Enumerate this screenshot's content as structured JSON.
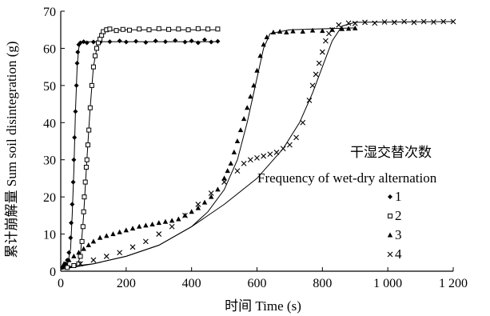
{
  "chart_data": {
    "type": "scatter",
    "xlabel": "时间 Time (s)",
    "ylabel": "累计崩解量 Sum soil disintegration (g)",
    "xlim": [
      0,
      1200
    ],
    "ylim": [
      0,
      70
    ],
    "x_ticks": [
      {
        "value": 0,
        "label": "0"
      },
      {
        "value": 200,
        "label": "200"
      },
      {
        "value": 400,
        "label": "400"
      },
      {
        "value": 600,
        "label": "600"
      },
      {
        "value": 800,
        "label": "800"
      },
      {
        "value": 1000,
        "label": "1 000"
      },
      {
        "value": 1200,
        "label": "1 200"
      }
    ],
    "y_ticks": [
      {
        "value": 0,
        "label": "0"
      },
      {
        "value": 10,
        "label": "10"
      },
      {
        "value": 20,
        "label": "20"
      },
      {
        "value": 30,
        "label": "30"
      },
      {
        "value": 40,
        "label": "40"
      },
      {
        "value": 50,
        "label": "50"
      },
      {
        "value": 60,
        "label": "60"
      },
      {
        "value": 70,
        "label": "70"
      }
    ],
    "grid": false,
    "legend": {
      "placement": "right",
      "title_cn": "干湿交替次数",
      "title_en": "Frequency of wet-dry alternation"
    },
    "series": [
      {
        "name": "1",
        "marker": "diamond",
        "points": [
          [
            5,
            1
          ],
          [
            10,
            1.5
          ],
          [
            15,
            2
          ],
          [
            20,
            3
          ],
          [
            25,
            5
          ],
          [
            30,
            9
          ],
          [
            32,
            13
          ],
          [
            35,
            18
          ],
          [
            38,
            24
          ],
          [
            40,
            30
          ],
          [
            42,
            36
          ],
          [
            45,
            43
          ],
          [
            48,
            50
          ],
          [
            50,
            56
          ],
          [
            52,
            59
          ],
          [
            55,
            61
          ],
          [
            60,
            61.5
          ],
          [
            70,
            61.8
          ],
          [
            80,
            61.5
          ],
          [
            100,
            61.7
          ],
          [
            120,
            61.6
          ],
          [
            150,
            61.8
          ],
          [
            180,
            62
          ],
          [
            200,
            61.7
          ],
          [
            230,
            61.9
          ],
          [
            260,
            61.6
          ],
          [
            290,
            62
          ],
          [
            320,
            61.8
          ],
          [
            350,
            62.1
          ],
          [
            380,
            61.7
          ],
          [
            400,
            62
          ],
          [
            420,
            61.5
          ],
          [
            440,
            62.3
          ],
          [
            460,
            61.7
          ],
          [
            480,
            61.9
          ]
        ],
        "fit": [
          [
            0,
            0.5
          ],
          [
            20,
            1.5
          ],
          [
            30,
            6
          ],
          [
            35,
            15
          ],
          [
            40,
            27
          ],
          [
            45,
            43
          ],
          [
            50,
            55
          ],
          [
            55,
            60
          ],
          [
            60,
            61.5
          ],
          [
            80,
            61.8
          ],
          [
            200,
            61.8
          ],
          [
            480,
            61.8
          ]
        ]
      },
      {
        "name": "2",
        "marker": "square",
        "points": [
          [
            20,
            1
          ],
          [
            40,
            1.5
          ],
          [
            55,
            2
          ],
          [
            60,
            4
          ],
          [
            65,
            8
          ],
          [
            68,
            12
          ],
          [
            70,
            16
          ],
          [
            72,
            20
          ],
          [
            75,
            24
          ],
          [
            78,
            28
          ],
          [
            80,
            30
          ],
          [
            83,
            34
          ],
          [
            86,
            38
          ],
          [
            90,
            44
          ],
          [
            95,
            50
          ],
          [
            100,
            55
          ],
          [
            105,
            58
          ],
          [
            110,
            60
          ],
          [
            115,
            61.5
          ],
          [
            120,
            62.5
          ],
          [
            125,
            63.5
          ],
          [
            130,
            64.5
          ],
          [
            140,
            65
          ],
          [
            150,
            65.2
          ],
          [
            170,
            64.8
          ],
          [
            190,
            65.1
          ],
          [
            210,
            64.9
          ],
          [
            240,
            65.2
          ],
          [
            270,
            65
          ],
          [
            300,
            65.3
          ],
          [
            330,
            65.1
          ],
          [
            360,
            65.2
          ],
          [
            390,
            65
          ],
          [
            420,
            65.3
          ],
          [
            450,
            65.2
          ],
          [
            480,
            65.2
          ]
        ],
        "fit": [
          [
            0,
            0.5
          ],
          [
            50,
            1.5
          ],
          [
            60,
            4
          ],
          [
            70,
            15
          ],
          [
            80,
            30
          ],
          [
            90,
            44
          ],
          [
            100,
            55
          ],
          [
            110,
            60
          ],
          [
            120,
            63
          ],
          [
            140,
            64.8
          ],
          [
            200,
            65
          ],
          [
            480,
            65
          ]
        ]
      },
      {
        "name": "3",
        "marker": "triangle",
        "points": [
          [
            10,
            2
          ],
          [
            25,
            3
          ],
          [
            40,
            4
          ],
          [
            55,
            5
          ],
          [
            70,
            6
          ],
          [
            85,
            7
          ],
          [
            100,
            8
          ],
          [
            120,
            9
          ],
          [
            140,
            9.5
          ],
          [
            160,
            10
          ],
          [
            180,
            10.5
          ],
          [
            200,
            11
          ],
          [
            220,
            11.5
          ],
          [
            240,
            12
          ],
          [
            260,
            12.3
          ],
          [
            280,
            12.6
          ],
          [
            300,
            13
          ],
          [
            320,
            13.3
          ],
          [
            340,
            13.6
          ],
          [
            360,
            14
          ],
          [
            380,
            15
          ],
          [
            400,
            16
          ],
          [
            420,
            17
          ],
          [
            440,
            18.5
          ],
          [
            460,
            20
          ],
          [
            480,
            22
          ],
          [
            500,
            25
          ],
          [
            510,
            27
          ],
          [
            520,
            29
          ],
          [
            530,
            32
          ],
          [
            540,
            35
          ],
          [
            550,
            38
          ],
          [
            560,
            41
          ],
          [
            570,
            44
          ],
          [
            580,
            47
          ],
          [
            590,
            50
          ],
          [
            600,
            54
          ],
          [
            610,
            58
          ],
          [
            620,
            61
          ],
          [
            630,
            63
          ],
          [
            650,
            64.3
          ],
          [
            670,
            64.5
          ],
          [
            690,
            64.3
          ],
          [
            710,
            64.6
          ],
          [
            740,
            64.5
          ],
          [
            770,
            64.8
          ],
          [
            800,
            64.7
          ],
          [
            830,
            65
          ],
          [
            860,
            65.2
          ],
          [
            880,
            65.3
          ],
          [
            900,
            65.4
          ]
        ],
        "fit": [
          [
            0,
            1
          ],
          [
            100,
            2
          ],
          [
            200,
            4
          ],
          [
            300,
            7
          ],
          [
            400,
            12
          ],
          [
            450,
            16
          ],
          [
            500,
            22
          ],
          [
            540,
            30
          ],
          [
            570,
            40
          ],
          [
            600,
            52
          ],
          [
            620,
            60
          ],
          [
            640,
            64
          ],
          [
            700,
            65
          ],
          [
            900,
            65.5
          ]
        ]
      },
      {
        "name": "4",
        "marker": "x",
        "points": [
          [
            60,
            2
          ],
          [
            100,
            3
          ],
          [
            140,
            4
          ],
          [
            180,
            5
          ],
          [
            220,
            6.5
          ],
          [
            260,
            8
          ],
          [
            300,
            10
          ],
          [
            340,
            12
          ],
          [
            380,
            15
          ],
          [
            420,
            18
          ],
          [
            460,
            21
          ],
          [
            500,
            24
          ],
          [
            540,
            27
          ],
          [
            560,
            29
          ],
          [
            580,
            30
          ],
          [
            600,
            30.5
          ],
          [
            620,
            31
          ],
          [
            640,
            31.5
          ],
          [
            660,
            32
          ],
          [
            680,
            33
          ],
          [
            700,
            34
          ],
          [
            720,
            36
          ],
          [
            740,
            40
          ],
          [
            760,
            46
          ],
          [
            770,
            50
          ],
          [
            780,
            53
          ],
          [
            790,
            56
          ],
          [
            800,
            59
          ],
          [
            810,
            62
          ],
          [
            820,
            64
          ],
          [
            830,
            65
          ],
          [
            850,
            66.3
          ],
          [
            880,
            66.8
          ],
          [
            900,
            66.7
          ],
          [
            930,
            67
          ],
          [
            960,
            66.8
          ],
          [
            990,
            67.1
          ],
          [
            1020,
            67
          ],
          [
            1050,
            67.2
          ],
          [
            1080,
            67
          ],
          [
            1110,
            67.2
          ],
          [
            1140,
            67.1
          ],
          [
            1170,
            67.2
          ],
          [
            1200,
            67.2
          ]
        ],
        "fit": [
          [
            0,
            0.5
          ],
          [
            100,
            2
          ],
          [
            200,
            4
          ],
          [
            300,
            7
          ],
          [
            400,
            12
          ],
          [
            500,
            18
          ],
          [
            600,
            25
          ],
          [
            680,
            33
          ],
          [
            730,
            40
          ],
          [
            770,
            48
          ],
          [
            800,
            55
          ],
          [
            830,
            62
          ],
          [
            860,
            66
          ],
          [
            900,
            67
          ],
          [
            1200,
            67.2
          ]
        ]
      }
    ]
  }
}
